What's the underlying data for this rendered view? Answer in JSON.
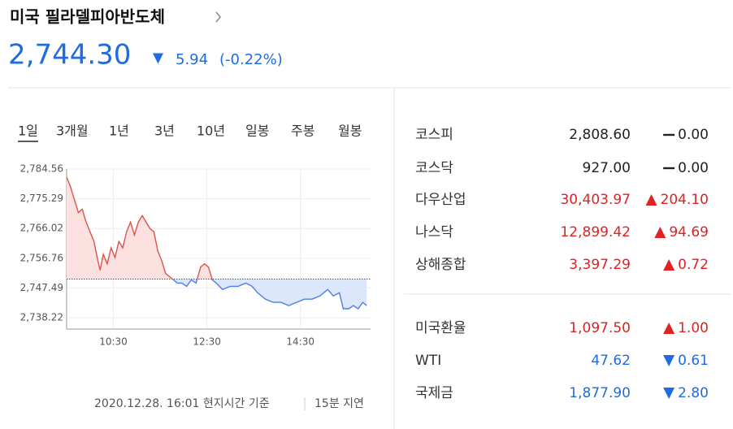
{
  "header": {
    "title": "미국 필라델피아반도체",
    "value": "2,744.30",
    "direction": "down",
    "change": "5.94",
    "change_pct": "(-0.22%)"
  },
  "tabs": {
    "items": [
      "1일",
      "3개월",
      "1년",
      "3년",
      "10년",
      "일봉",
      "주봉",
      "월봉"
    ],
    "active": 0
  },
  "chart": {
    "type": "line",
    "x": [
      570,
      575,
      580,
      585,
      590,
      595,
      600,
      605,
      610,
      613,
      617,
      622,
      627,
      632,
      637,
      642,
      647,
      652,
      657,
      662,
      667,
      672,
      677,
      682,
      687,
      692,
      697,
      702,
      707,
      712,
      718,
      724,
      730,
      736,
      742,
      747,
      752,
      757,
      762,
      770,
      780,
      790,
      800,
      808,
      815,
      825,
      835,
      845,
      855,
      865,
      875,
      885,
      895,
      905,
      912,
      920,
      925,
      932,
      938,
      944,
      950,
      955
    ],
    "values": [
      2782,
      2779,
      2775,
      2771,
      2772,
      2768,
      2765,
      2762,
      2756,
      2753,
      2758,
      2755,
      2760,
      2757,
      2762,
      2760,
      2765,
      2768,
      2764,
      2768,
      2770,
      2768,
      2766,
      2765,
      2759,
      2756,
      2752,
      2751,
      2750,
      2749,
      2749,
      2748,
      2750,
      2749,
      2754,
      2755,
      2754,
      2750,
      2749,
      2747,
      2748,
      2748,
      2749,
      2748,
      2746,
      2744,
      2743,
      2743,
      2742,
      2743,
      2744,
      2744,
      2745,
      2747,
      2745,
      2746,
      2741,
      2741,
      2742,
      2741,
      2743,
      2742
    ],
    "baseline": 2750.24,
    "xlim": [
      570,
      960
    ],
    "xticks": [
      {
        "value": 630,
        "label": "10:30"
      },
      {
        "value": 750,
        "label": "12:30"
      },
      {
        "value": 870,
        "label": "14:30"
      }
    ],
    "ylim": [
      2734.68,
      2784.56
    ],
    "yticks": [
      {
        "value": 2784.56,
        "label": "2,784.56"
      },
      {
        "value": 2775.29,
        "label": "2,775.29"
      },
      {
        "value": 2766.02,
        "label": "2,766.02"
      },
      {
        "value": 2756.76,
        "label": "2,756.76"
      },
      {
        "value": 2747.49,
        "label": "2,747.49"
      },
      {
        "value": 2738.22,
        "label": "2,738.22"
      }
    ],
    "up_color": "#d9534f",
    "down_color": "#4a7ee8",
    "grid": true
  },
  "footer": {
    "timestamp": "2020.12.28. 16:01 현지시간 기준",
    "delay": "15분 지연"
  },
  "markets": {
    "groups": [
      [
        {
          "name": "코스피",
          "value": "2,808.60",
          "direction": "flat",
          "change": "0.00"
        },
        {
          "name": "코스닥",
          "value": "927.00",
          "direction": "flat",
          "change": "0.00"
        },
        {
          "name": "다우산업",
          "value": "30,403.97",
          "direction": "up",
          "change": "204.10"
        },
        {
          "name": "나스닥",
          "value": "12,899.42",
          "direction": "up",
          "change": "94.69"
        },
        {
          "name": "상해종합",
          "value": "3,397.29",
          "direction": "up",
          "change": "0.72"
        }
      ],
      [
        {
          "name": "미국환율",
          "value": "1,097.50",
          "direction": "up",
          "change": "1.00"
        },
        {
          "name": "WTI",
          "value": "47.62",
          "direction": "down",
          "change": "0.61"
        },
        {
          "name": "국제금",
          "value": "1,877.90",
          "direction": "down",
          "change": "2.80"
        }
      ]
    ]
  }
}
